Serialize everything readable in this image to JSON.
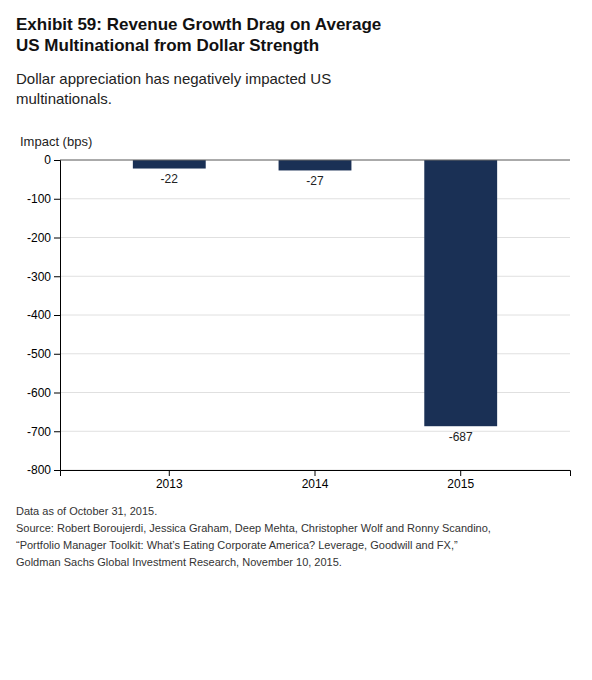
{
  "chart_data": {
    "type": "bar",
    "title": "Exhibit 59: Revenue Growth Drag on Average\nUS Multinational from Dollar Strength",
    "subtitle": "Dollar appreciation has negatively impacted US\nmultinationals.",
    "ylabel": "Impact (bps)",
    "footnote": "Data as of October 31, 2015.\nSource: Robert Boroujerdi, Jessica Graham, Deep Mehta, Christopher Wolf and Ronny Scandino,\n“Portfolio Manager Toolkit: What’s Eating Corporate America? Leverage, Goodwill and FX,”\nGoldman Sachs Global Investment Research, November 10, 2015.",
    "categories": [
      "2013",
      "2014",
      "2015"
    ],
    "values": [
      -22,
      -27,
      -687
    ],
    "color": "#1a3055",
    "ylim": [
      -800,
      0
    ],
    "yticks": [
      0,
      -100,
      -200,
      -300,
      -400,
      -500,
      -600,
      -700,
      -800
    ],
    "grid": true,
    "data_labels": true
  }
}
